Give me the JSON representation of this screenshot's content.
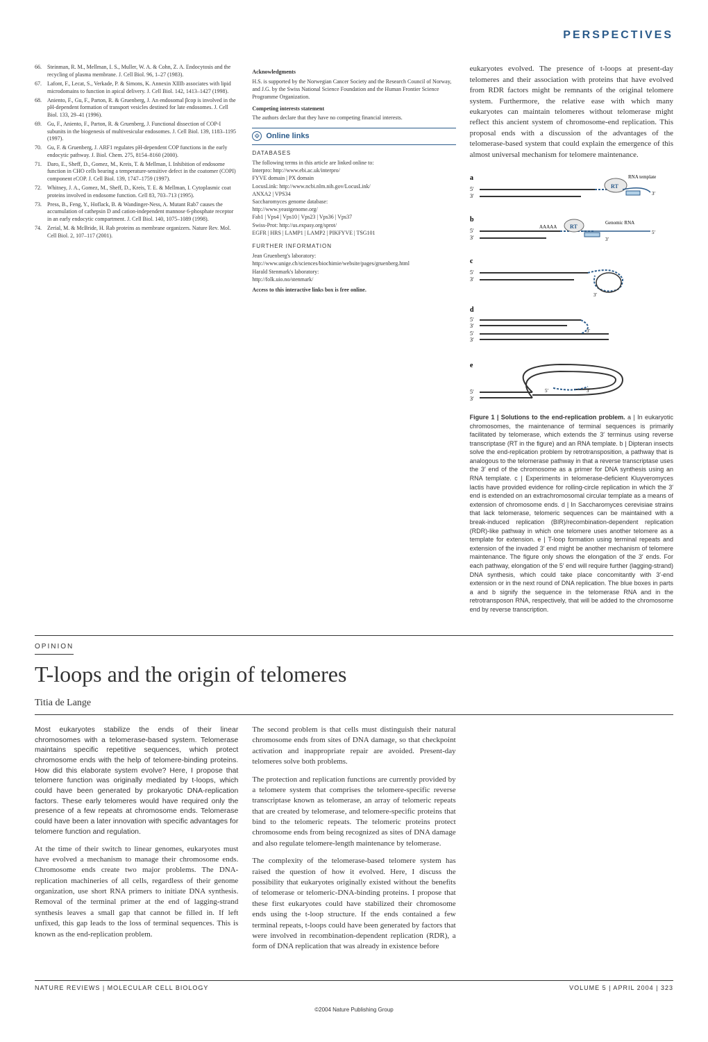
{
  "header": {
    "section_label": "PERSPECTIVES"
  },
  "references": [
    {
      "num": "66.",
      "text": "Steinman, R. M., Mellman, I. S., Muller, W. A. & Cohn, Z. A. Endocytosis and the recycling of plasma membrane. J. Cell Biol. 96, 1–27 (1983)."
    },
    {
      "num": "67.",
      "text": "Lafont, F., Lecat, S., Verkade, P. & Simons, K. Annexin XIIIb associates with lipid microdomains to function in apical delivery. J. Cell Biol. 142, 1413–1427 (1998)."
    },
    {
      "num": "68.",
      "text": "Aniento, F., Gu, F., Parton, R. & Gruenberg, J. An endosomal βcop is involved in the pH-dependent formation of transport vesicles destined for late endosomes. J. Cell Biol. 133, 29–41 (1996)."
    },
    {
      "num": "69.",
      "text": "Gu, F., Aniento, F., Parton, R. & Gruenberg, J. Functional dissection of COP-I subunits in the biogenesis of multivesicular endosomes. J. Cell Biol. 139, 1183–1195 (1997)."
    },
    {
      "num": "70.",
      "text": "Gu, F. & Gruenberg, J. ARF1 regulates pH-dependent COP functions in the early endocytic pathway. J. Biol. Chem. 275, 8154–8160 (2000)."
    },
    {
      "num": "71.",
      "text": "Daro, E., Sheff, D., Gomez, M., Kreis, T. & Mellman, I. Inhibition of endosome function in CHO cells bearing a temperature-sensitive defect in the coatomer (COPI) component εCOP. J. Cell Biol. 139, 1747–1759 (1997)."
    },
    {
      "num": "72.",
      "text": "Whitney, J. A., Gomez, M., Sheff, D., Kreis, T. E. & Mellman, I. Cytoplasmic coat proteins involved in endosome function. Cell 83, 703–713 (1995)."
    },
    {
      "num": "73.",
      "text": "Press, B., Feng, Y., Hoflack, B. & Wandinger-Ness, A. Mutant Rab7 causes the accumulation of cathepsin D and cation-independent mannose 6-phosphate receptor in an early endocytic compartment. J. Cell Biol. 140, 1075–1089 (1998)."
    },
    {
      "num": "74.",
      "text": "Zerial, M. & McBride, H. Rab proteins as membrane organizers. Nature Rev. Mol. Cell Biol. 2, 107–117 (2001)."
    }
  ],
  "acknowledgments": {
    "heading": "Acknowledgments",
    "text": "H.S. is supported by the Norwegian Cancer Society and the Research Council of Norway, and J.G. by the Swiss National Science Foundation and the Human Frontier Science Programme Organization."
  },
  "competing": {
    "heading": "Competing interests statement",
    "text": "The authors declare that they have no competing financial interests."
  },
  "online_links": {
    "header": "Online links",
    "databases_label": "DATABASES",
    "databases_intro": "The following terms in this article are linked online to:",
    "db_lines": [
      "Interpro: http://www.ebi.ac.uk/interpro/",
      "FYVE domain | PX domain",
      "LocusLink: http://www.ncbi.nlm.nih.gov/LocusLink/",
      "ANXA2 | VPS34",
      "Saccharomyces genome database:",
      "http://www.yeastgenome.org/",
      "Fab1 | Vps4 | Vps10 | Vps23 | Vps36 | Vps37",
      "Swiss-Prot: http://us.expasy.org/sprot/",
      "EGFR | HRS | LAMP1 | LAMP2 | PIKFYVE | TSG101"
    ],
    "further_label": "FURTHER INFORMATION",
    "further_lines": [
      "Jean Gruenberg's laboratory:",
      "http://www.unige.ch/sciences/biochimie/website/pages/gruenberg.html",
      "Harald Stenmark's laboratory:",
      "http://folk.uio.no/stenmark/"
    ],
    "access_note": "Access to this interactive links box is free online."
  },
  "right_intro": "eukaryotes evolved. The presence of t-loops at present-day telomeres and their association with proteins that have evolved from RDR factors might be remnants of the original telomere system. Furthermore, the relative ease with which many eukaryotes can maintain telomeres without telomerase might reflect this ancient system of chromosome-end replication. This proposal ends with a discussion of the advantages of the telomerase-based system that could explain the emergence of this almost universal mechanism for telomere maintenance.",
  "opinion_label": "OPINION",
  "article": {
    "title": "T-loops and the origin of telomeres",
    "author": "Titia de Lange",
    "abstract": "Most eukaryotes stabilize the ends of their linear chromosomes with a telomerase-based system. Telomerase maintains specific repetitive sequences, which protect chromosome ends with the help of telomere-binding proteins. How did this elaborate system evolve? Here, I propose that telomere function was originally mediated by t-loops, which could have been generated by prokaryotic DNA-replication factors. These early telomeres would have required only the presence of a few repeats at chromosome ends. Telomerase could have been a later innovation with specific advantages for telomere function and regulation.",
    "p1": "At the time of their switch to linear genomes, eukaryotes must have evolved a mechanism to manage their chromosome ends. Chromosome ends create two major problems. The DNA-replication machineries of all cells, regardless of their genome organization, use short RNA primers to initiate DNA synthesis. Removal of the terminal primer at the end of lagging-strand synthesis leaves a small gap that cannot be filled in. If left unfixed, this gap leads to the loss of terminal sequences. This is known as the end-replication problem.",
    "p2": "The second problem is that cells must distinguish their natural chromosome ends from sites of DNA damage, so that checkpoint activation and inappropriate repair are avoided. Present-day telomeres solve both problems.",
    "p3": "The protection and replication functions are currently provided by a telomere system that comprises the telomere-specific reverse transcriptase known as telomerase, an array of telomeric repeats that are created by telomerase, and telomere-specific proteins that bind to the telomeric repeats. The telomeric proteins protect chromosome ends from being recognized as sites of DNA damage and also regulate telomere-length maintenance by telomerase.",
    "p4": "The complexity of the telomerase-based telomere system has raised the question of how it evolved. Here, I discuss the possibility that eukaryotes originally existed without the benefits of telomerase or telomeric-DNA-binding proteins. I propose that these first eukaryotes could have stabilized their chromosome ends using the t-loop structure. If the ends contained a few terminal repeats, t-loops could have been generated by factors that were involved in recombination-dependent replication (RDR), a form of DNA replication that was already in existence before"
  },
  "figure": {
    "panels": {
      "a": {
        "label": "a",
        "rt": "RT",
        "rna_template": "RNA template",
        "five": "5′",
        "three": "3′"
      },
      "b": {
        "label": "b",
        "rt": "RT",
        "genomic_rna": "Genomic RNA",
        "aaaa": "AAAAA",
        "five": "5′",
        "three": "3′"
      },
      "c": {
        "label": "c",
        "five": "5′",
        "three": "3′"
      },
      "d": {
        "label": "d",
        "five": "5′",
        "three": "3′"
      },
      "e": {
        "label": "e",
        "five": "5′",
        "three": "3′"
      }
    },
    "caption_lead": "Figure 1 | Solutions to the end-replication problem.",
    "caption": " a | In eukaryotic chromosomes, the maintenance of terminal sequences is primarily facilitated by telomerase, which extends the 3′ terminus using reverse transcriptase (RT in the figure) and an RNA template. b | Dipteran insects solve the end-replication problem by retrotransposition, a pathway that is analogous to the telomerase pathway in that a reverse transcriptase uses the 3′ end of the chromosome as a primer for DNA synthesis using an RNA template. c | Experiments in telomerase-deficient Kluyveromyces lactis have provided evidence for rolling-circle replication in which the 3′ end is extended on an extrachromosomal circular template as a means of extension of chromosome ends. d | In Saccharomyces cerevisiae strains that lack telomerase, telomeric sequences can be maintained with a break-induced replication (BIR)/recombination-dependent replication (RDR)-like pathway in which one telomere uses another telomere as a template for extension. e | T-loop formation using terminal repeats and extension of the invaded 3′ end might be another mechanism of telomere maintenance. The figure only shows the elongation of the 3′ ends. For each pathway, elongation of the 5′ end will require further (lagging-strand) DNA synthesis, which could take place concomitantly with 3′-end extension or in the next round of DNA replication. The blue boxes in parts a and b signify the sequence in the telomerase RNA and in the retrotransposon RNA, respectively, that will be added to the chromosome end by reverse transcription."
  },
  "footer": {
    "left_text": "NATURE REVIEWS | MOLECULAR CELL BIOLOGY",
    "right_text": "VOLUME 5 | APRIL 2004 | 323",
    "copyright": "©2004 Nature Publishing Group"
  },
  "colors": {
    "accent": "#2a5a8a",
    "rt_box": "#b3d1e8",
    "text": "#333333"
  }
}
